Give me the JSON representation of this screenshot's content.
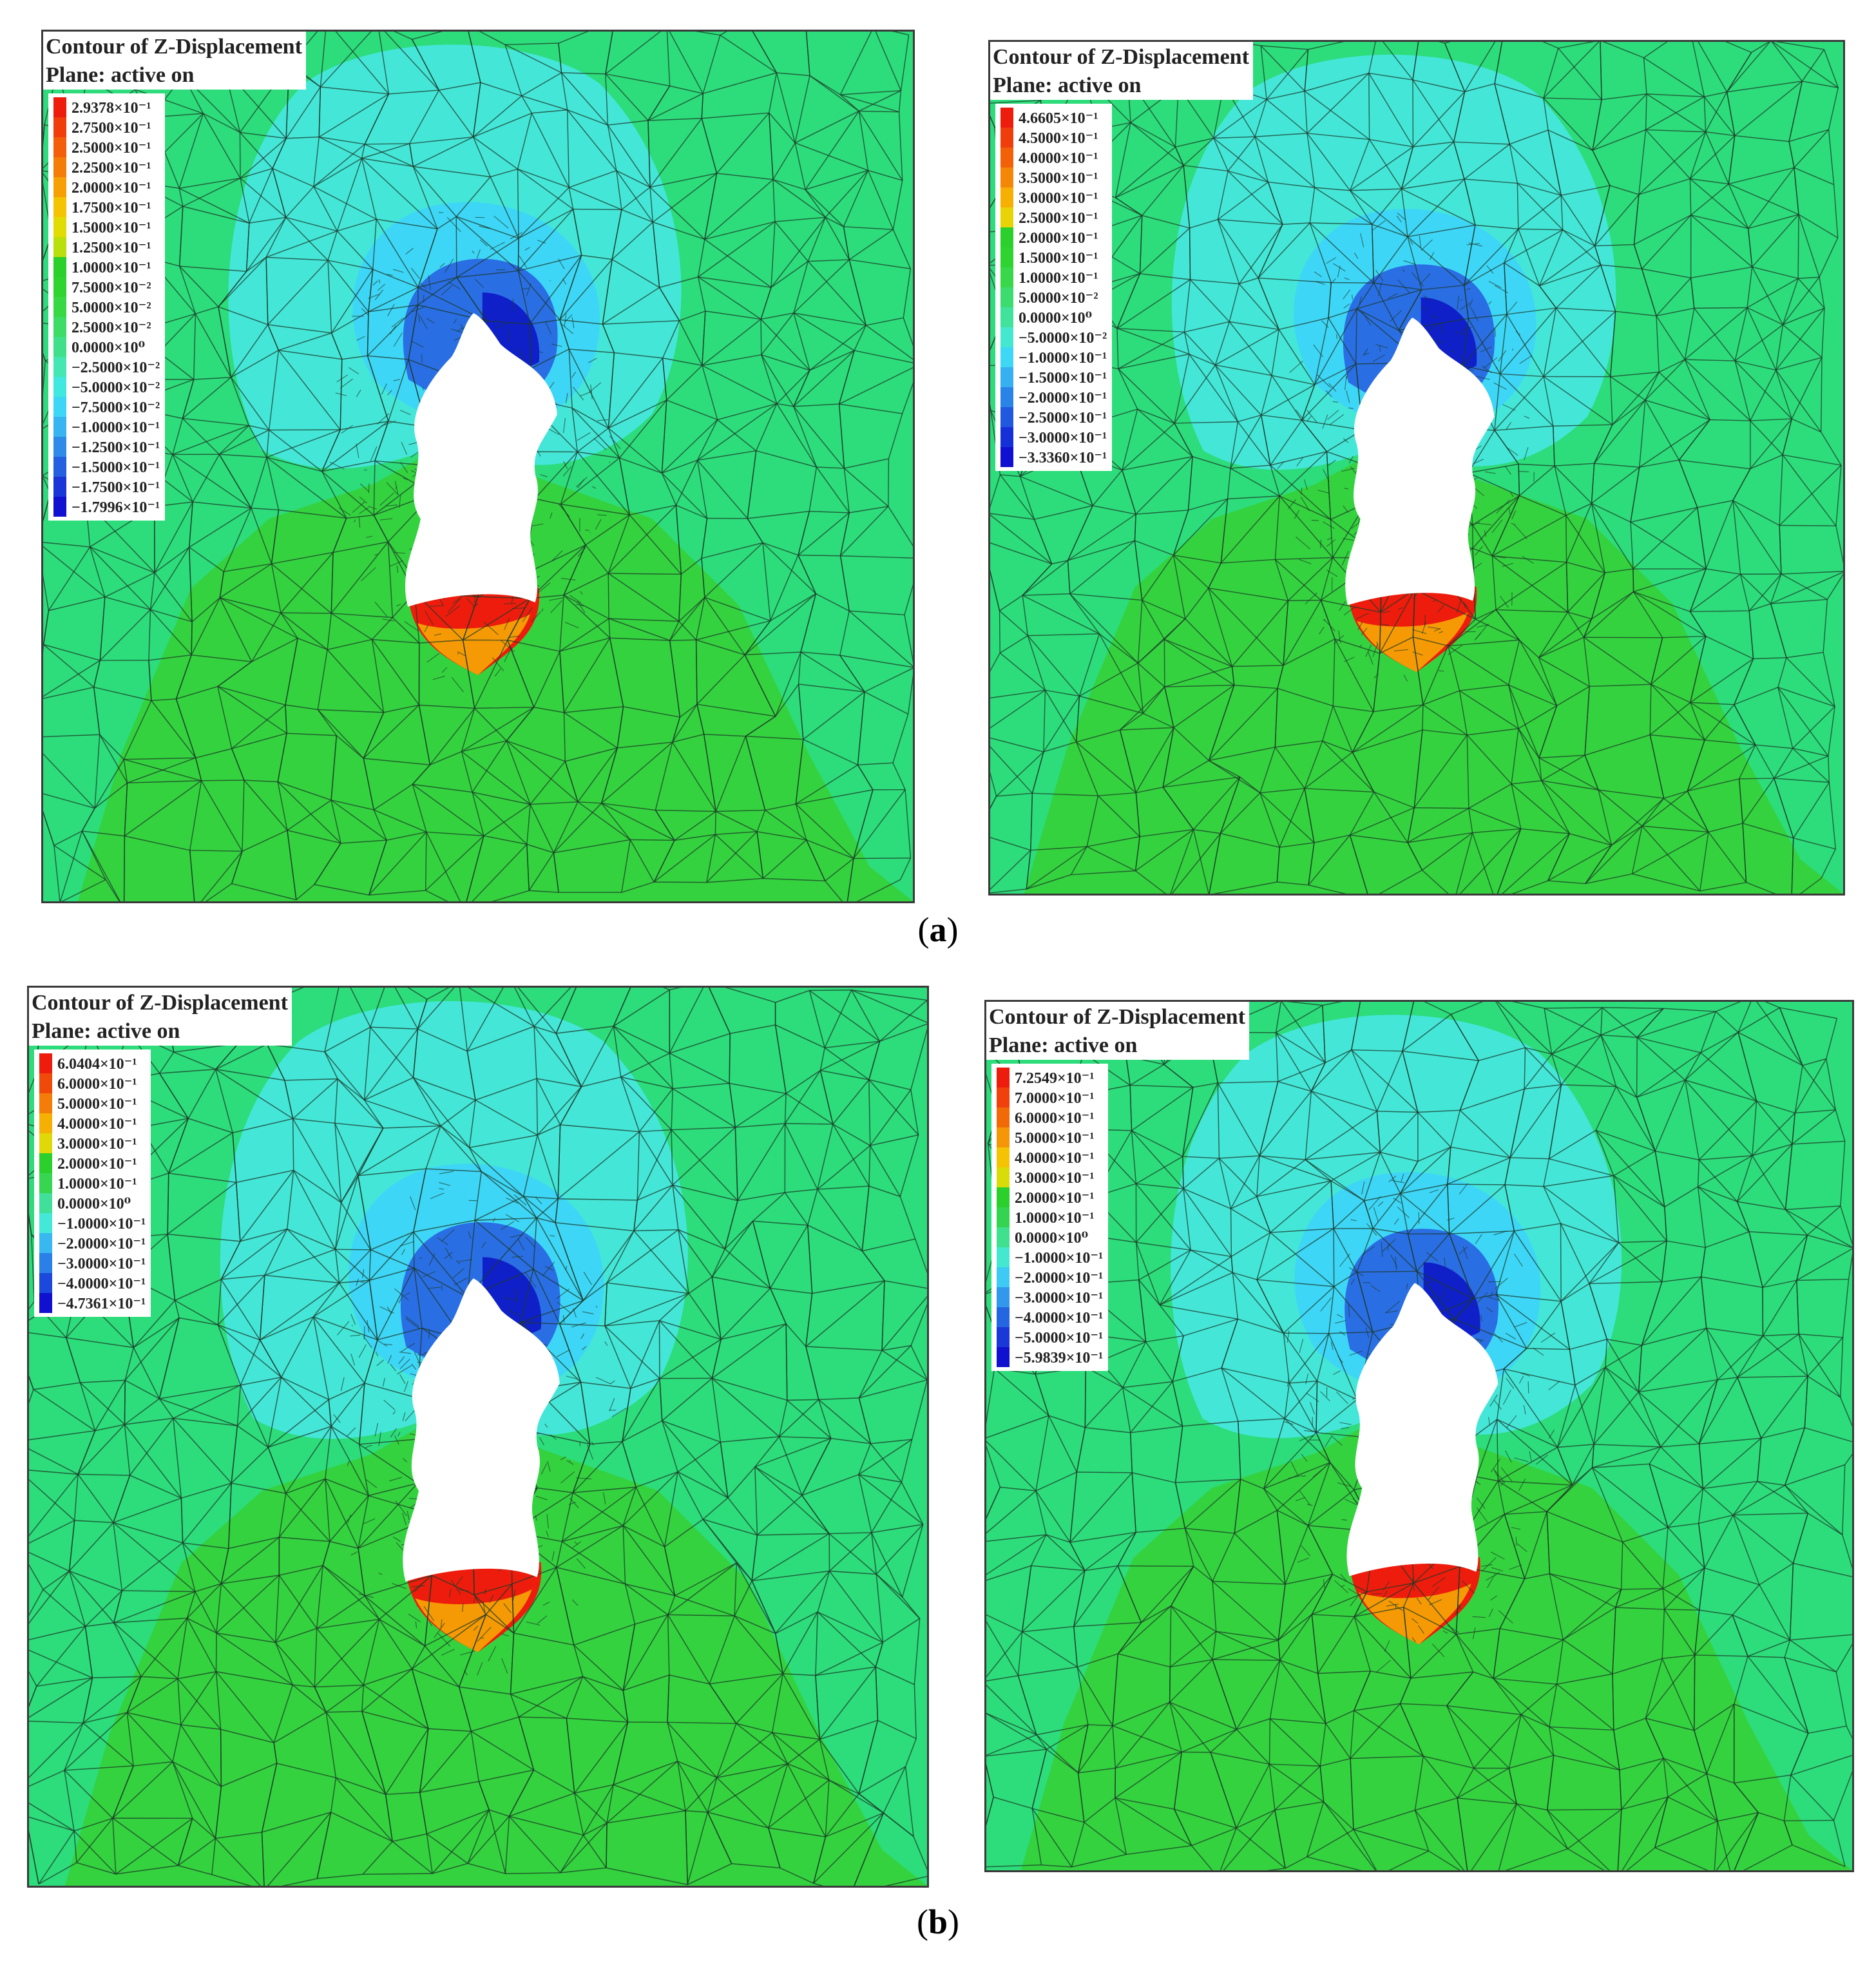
{
  "panels": [
    {
      "title": "Contour of Z-Displacement",
      "subtitle": "Plane: active on",
      "legend": [
        "2.9378×10⁻¹",
        "2.7500×10⁻¹",
        "2.5000×10⁻¹",
        "2.2500×10⁻¹",
        "2.0000×10⁻¹",
        "1.7500×10⁻¹",
        "1.5000×10⁻¹",
        "1.2500×10⁻¹",
        "1.0000×10⁻¹",
        "7.5000×10⁻²",
        "5.0000×10⁻²",
        "2.5000×10⁻²",
        "0.0000×10⁰",
        "−2.5000×10⁻²",
        "−5.0000×10⁻²",
        "−7.5000×10⁻²",
        "−1.0000×10⁻¹",
        "−1.2500×10⁻¹",
        "−1.5000×10⁻¹",
        "−1.7500×10⁻¹",
        "−1.7996×10⁻¹"
      ],
      "colors": [
        "#ee1c0c",
        "#f03d0c",
        "#f25e0a",
        "#f47c08",
        "#f6a006",
        "#f4c404",
        "#e2dc06",
        "#b8e00c",
        "#2cd02c",
        "#30d430",
        "#38d845",
        "#3cdc66",
        "#40e08a",
        "#44e6b2",
        "#40e8e0",
        "#3ed6f6",
        "#38b4f0",
        "#2e8ce8",
        "#2460e0",
        "#1a36d8",
        "#1010d0"
      ]
    },
    {
      "title": "Contour of Z-Displacement",
      "subtitle": "Plane: active on",
      "legend": [
        "4.6605×10⁻¹",
        "4.5000×10⁻¹",
        "4.0000×10⁻¹",
        "3.5000×10⁻¹",
        "3.0000×10⁻¹",
        "2.5000×10⁻¹",
        "2.0000×10⁻¹",
        "1.5000×10⁻¹",
        "1.0000×10⁻¹",
        "5.0000×10⁻²",
        "0.0000×10⁰",
        "−5.0000×10⁻²",
        "−1.0000×10⁻¹",
        "−1.5000×10⁻¹",
        "−2.0000×10⁻¹",
        "−2.5000×10⁻¹",
        "−3.0000×10⁻¹",
        "−3.3360×10⁻¹"
      ],
      "colors": [
        "#ee1c0c",
        "#f03d0c",
        "#f26008",
        "#f48608",
        "#f6b004",
        "#e8d406",
        "#2cd02c",
        "#30d430",
        "#38d84a",
        "#3cdc70",
        "#40e29c",
        "#44e8d0",
        "#3ed8f6",
        "#36b0f0",
        "#2a84e8",
        "#2058e0",
        "#1630d8",
        "#1010d0"
      ]
    },
    {
      "title": "Contour of Z-Displacement",
      "subtitle": "Plane: active on",
      "legend": [
        "6.0404×10⁻¹",
        "6.0000×10⁻¹",
        "5.0000×10⁻¹",
        "4.0000×10⁻¹",
        "3.0000×10⁻¹",
        "2.0000×10⁻¹",
        "1.0000×10⁻¹",
        "0.0000×10⁰",
        "−1.0000×10⁻¹",
        "−2.0000×10⁻¹",
        "−3.0000×10⁻¹",
        "−4.0000×10⁻¹",
        "−4.7361×10⁻¹"
      ],
      "colors": [
        "#ee1c0c",
        "#f04a0a",
        "#f47c08",
        "#f6b004",
        "#e0d808",
        "#2cd02c",
        "#36d650",
        "#40e09a",
        "#44e8d8",
        "#38b8f0",
        "#2a80e8",
        "#1c48dc",
        "#1010d0"
      ]
    },
    {
      "title": "Contour of Z-Displacement",
      "subtitle": "Plane: active on",
      "legend": [
        "7.2549×10⁻¹",
        "7.0000×10⁻¹",
        "6.0000×10⁻¹",
        "5.0000×10⁻¹",
        "4.0000×10⁻¹",
        "3.0000×10⁻¹",
        "2.0000×10⁻¹",
        "1.0000×10⁻¹",
        "0.0000×10⁰",
        "−1.0000×10⁻¹",
        "−2.0000×10⁻¹",
        "−3.0000×10⁻¹",
        "−4.0000×10⁻¹",
        "−5.0000×10⁻¹",
        "−5.9839×10⁻¹"
      ],
      "colors": [
        "#ee1c0c",
        "#f0400c",
        "#f26a08",
        "#f49606",
        "#f4c404",
        "#d8dc08",
        "#2cd02c",
        "#34d450",
        "#40e08e",
        "#44e8d0",
        "#3ecaf4",
        "#3298ec",
        "#2466e2",
        "#1a38d8",
        "#1010d0"
      ]
    }
  ],
  "captions": {
    "a": "a",
    "b": "b"
  },
  "palette": {
    "base_green": "#2ddc7a",
    "lower_green": "#34d23e",
    "light_cyan": "#44e6d8",
    "mid_cyan": "#3ed6f6",
    "blue": "#2a6ee4",
    "dark_blue": "#1020c8",
    "hot": "#ee1c0c",
    "mesh": "#1c3a2a"
  }
}
